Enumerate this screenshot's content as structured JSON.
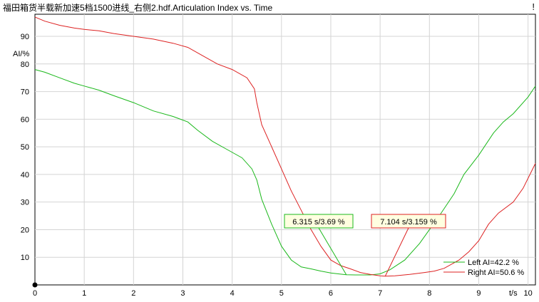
{
  "window": {
    "title": "福田箱货半载新加速5档1500进线_右侧2.hdf.Articulation Index vs. Time",
    "close_glyph": "!"
  },
  "chart_data": {
    "type": "line",
    "title": "福田箱货半载新加速5档1500进线_右侧2.hdf.Articulation Index vs. Time",
    "xlabel": "t/s",
    "ylabel": "AI/%",
    "xlim": [
      0,
      10.15
    ],
    "ylim": [
      0,
      98
    ],
    "xticks": [
      0,
      1,
      2,
      3,
      4,
      5,
      6,
      7,
      8,
      9,
      10
    ],
    "yticks": [
      10,
      20,
      30,
      40,
      50,
      60,
      70,
      80,
      90
    ],
    "grid": true,
    "legend_position": "bottom-right",
    "series": [
      {
        "name": "Left AI=42.2 %",
        "color": "#1bb81b",
        "x": [
          0,
          0.2,
          0.5,
          0.8,
          1.0,
          1.3,
          1.6,
          2.0,
          2.4,
          2.8,
          3.1,
          3.3,
          3.6,
          3.9,
          4.2,
          4.4,
          4.5,
          4.6,
          4.8,
          5.0,
          5.2,
          5.4,
          5.6,
          5.8,
          6.0,
          6.2,
          6.315,
          6.5,
          6.8,
          7.0,
          7.2,
          7.5,
          7.8,
          8.0,
          8.2,
          8.5,
          8.7,
          9.0,
          9.3,
          9.5,
          9.7,
          10.0,
          10.15
        ],
        "y": [
          78,
          77,
          75,
          73,
          72,
          70.5,
          68.5,
          66,
          63,
          61,
          59,
          56,
          52,
          49,
          46,
          42,
          38,
          31,
          22,
          14,
          9,
          6.5,
          5.8,
          5,
          4.3,
          3.9,
          3.69,
          3.6,
          3.6,
          4,
          5.5,
          9,
          15,
          20,
          25,
          33,
          40,
          47,
          55,
          59,
          62,
          68,
          72
        ]
      },
      {
        "name": "Right AI=50.6 %",
        "color": "#dd2222",
        "x": [
          0,
          0.2,
          0.5,
          0.8,
          1.0,
          1.3,
          1.6,
          2.0,
          2.4,
          2.8,
          3.1,
          3.4,
          3.7,
          4.0,
          4.3,
          4.45,
          4.5,
          4.6,
          4.8,
          5.0,
          5.2,
          5.4,
          5.6,
          5.8,
          6.0,
          6.2,
          6.4,
          6.6,
          6.8,
          7.0,
          7.104,
          7.3,
          7.6,
          7.9,
          8.1,
          8.3,
          8.6,
          8.8,
          9.0,
          9.2,
          9.4,
          9.7,
          9.9,
          10.15
        ],
        "y": [
          97,
          95.5,
          94,
          93,
          92.5,
          92,
          91,
          90,
          89,
          87.5,
          86,
          83,
          80,
          78,
          75,
          71,
          66,
          58,
          50,
          42,
          34,
          27,
          20,
          14,
          9,
          7,
          5.8,
          4.5,
          3.8,
          3.3,
          3.159,
          3.3,
          3.8,
          4.5,
          5,
          6,
          9,
          12,
          16,
          22,
          26,
          30,
          35,
          44
        ]
      }
    ],
    "annotations": [
      {
        "text": "6.315 s/3.69 %",
        "x": 6.315,
        "y": 3.69,
        "series": "Left AI=42.2 %"
      },
      {
        "text": "7.104 s/3.159 %",
        "x": 7.104,
        "y": 3.159,
        "series": "Right AI=50.6 %"
      }
    ]
  }
}
